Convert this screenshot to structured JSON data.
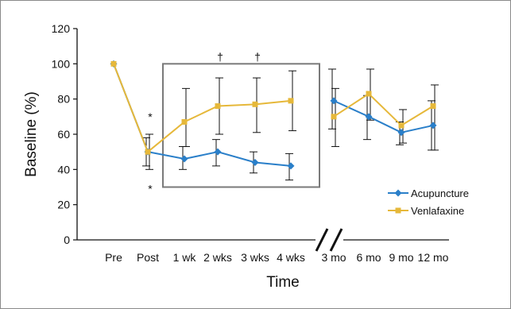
{
  "chart_data": {
    "type": "line",
    "ylabel": "Baseline (%)",
    "xlabel": "Time",
    "ylim": [
      0,
      120
    ],
    "yticks": [
      0,
      20,
      40,
      60,
      80,
      100,
      120
    ],
    "categories": [
      "Pre",
      "Post",
      "1 wk",
      "2 wks",
      "3 wks",
      "4 wks",
      "3 mo",
      "6 mo",
      "9 mo",
      "12 mo"
    ],
    "axis_break": "between 4 wks and 3 mo",
    "series": [
      {
        "name": "Acupuncture",
        "color": "#2a7fc9",
        "marker": "diamond",
        "values": [
          100,
          50,
          46,
          50,
          44,
          42,
          79,
          70,
          61,
          65
        ],
        "err_low": [
          null,
          42,
          40,
          42,
          38,
          34,
          63,
          57,
          54,
          51
        ],
        "err_high": [
          null,
          58,
          53,
          57,
          50,
          49,
          97,
          82,
          67,
          79
        ]
      },
      {
        "name": "Venlafaxine",
        "color": "#e6b83a",
        "marker": "square",
        "values": [
          100,
          50,
          67,
          76,
          77,
          79,
          70,
          83,
          65,
          76
        ],
        "err_low": [
          null,
          40,
          53,
          60,
          61,
          62,
          53,
          68,
          55,
          51
        ],
        "err_high": [
          null,
          60,
          86,
          92,
          92,
          96,
          86,
          97,
          74,
          88
        ]
      }
    ],
    "annotations": [
      {
        "text": "*",
        "category": "Post",
        "y": 70
      },
      {
        "text": "*",
        "category": "Post",
        "y": 29
      },
      {
        "text": "†",
        "category": "2 wks",
        "y": 104
      },
      {
        "text": "†",
        "category": "3 wks",
        "y": 104
      }
    ],
    "highlight_box": {
      "from_category": "1 wk",
      "to_category": "4 wks",
      "y_range": [
        30,
        100
      ]
    },
    "legend_position": "bottom-right",
    "grid": false
  }
}
